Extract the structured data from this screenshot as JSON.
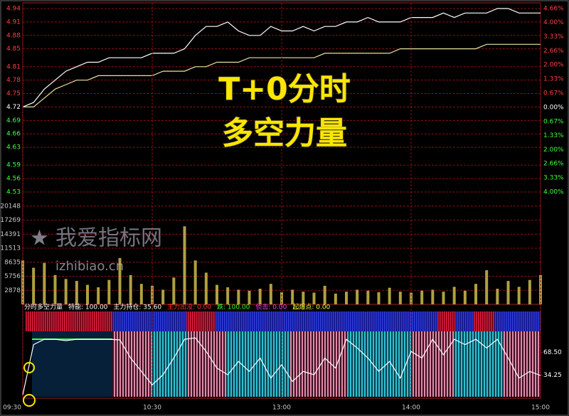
{
  "chart_data": [
    {
      "type": "line",
      "annotations": [
        "T+0分时",
        "多空力量",
        "我爱指标网",
        "izhibiao.cn"
      ],
      "x": [
        0,
        5,
        10,
        15,
        20,
        25,
        30,
        35,
        40,
        45,
        50,
        55,
        60,
        65,
        70,
        75,
        80,
        85,
        90,
        95,
        100,
        105,
        110,
        115,
        120,
        125,
        130,
        135,
        140,
        145,
        150,
        155,
        160,
        165,
        170,
        175,
        180,
        185,
        190,
        195,
        200,
        205,
        210,
        215,
        220,
        225,
        230,
        235,
        240
      ],
      "xlim": [
        0,
        240
      ],
      "series": [
        {
          "color": "#ffffff",
          "values": [
            4.72,
            4.73,
            4.76,
            4.78,
            4.8,
            4.81,
            4.82,
            4.82,
            4.83,
            4.83,
            4.83,
            4.83,
            4.84,
            4.84,
            4.84,
            4.85,
            4.88,
            4.9,
            4.9,
            4.91,
            4.89,
            4.88,
            4.88,
            4.9,
            4.89,
            4.89,
            4.9,
            4.89,
            4.9,
            4.9,
            4.91,
            4.91,
            4.92,
            4.91,
            4.91,
            4.91,
            4.92,
            4.92,
            4.92,
            4.93,
            4.92,
            4.93,
            4.93,
            4.93,
            4.94,
            4.94,
            4.93,
            4.93,
            4.93
          ]
        },
        {
          "color": "#e8e4a0",
          "values": [
            4.72,
            4.72,
            4.74,
            4.76,
            4.77,
            4.78,
            4.78,
            4.79,
            4.79,
            4.79,
            4.79,
            4.79,
            4.79,
            4.8,
            4.8,
            4.8,
            4.81,
            4.81,
            4.82,
            4.82,
            4.82,
            4.83,
            4.83,
            4.83,
            4.83,
            4.83,
            4.83,
            4.83,
            4.84,
            4.84,
            4.84,
            4.84,
            4.84,
            4.84,
            4.84,
            4.85,
            4.85,
            4.85,
            4.85,
            4.85,
            4.85,
            4.85,
            4.85,
            4.86,
            4.86,
            4.86,
            4.86,
            4.86,
            4.86
          ]
        }
      ],
      "ylim": [
        4.53,
        4.94
      ],
      "yticks": [
        4.94,
        4.91,
        4.88,
        4.85,
        4.81,
        4.78,
        4.75,
        4.72,
        4.69,
        4.66,
        4.63,
        4.59,
        4.56,
        4.53
      ],
      "y2lim": [
        -4.0,
        4.66
      ],
      "y2ticks": [
        {
          "value": 4.66,
          "label": "4.66%"
        },
        {
          "value": 4.0,
          "label": "4.00%"
        },
        {
          "value": 3.33,
          "label": "3.33%"
        },
        {
          "value": 2.66,
          "label": "2.66%"
        },
        {
          "value": 2.0,
          "label": "2.00%"
        },
        {
          "value": 1.33,
          "label": "1.33%"
        },
        {
          "value": 0.67,
          "label": "0.67%"
        },
        {
          "value": 0,
          "label": "0.00%"
        },
        {
          "value": -0.67,
          "label": "0.67%"
        },
        {
          "value": -1.33,
          "label": "1.33%"
        },
        {
          "value": -2.0,
          "label": "2.00%"
        },
        {
          "value": -2.66,
          "label": "2.66%"
        },
        {
          "value": -3.33,
          "label": "3.33%"
        },
        {
          "value": -4.0,
          "label": "4.00%"
        }
      ],
      "grid": true
    },
    {
      "type": "bar",
      "x": [
        0,
        5,
        10,
        15,
        20,
        25,
        30,
        35,
        40,
        45,
        50,
        55,
        60,
        65,
        70,
        75,
        80,
        85,
        90,
        95,
        100,
        105,
        110,
        115,
        120,
        125,
        130,
        135,
        140,
        145,
        150,
        155,
        160,
        165,
        170,
        175,
        180,
        185,
        190,
        195,
        200,
        205,
        210,
        215,
        220,
        225,
        230,
        235,
        240
      ],
      "xlim": [
        0,
        240
      ],
      "color": "#b0a040",
      "values": [
        9000,
        7500,
        8500,
        6000,
        5200,
        4800,
        4000,
        3500,
        5000,
        9500,
        6000,
        4200,
        3800,
        3000,
        5500,
        16000,
        9000,
        6500,
        4000,
        3500,
        3000,
        2800,
        3200,
        4200,
        2500,
        3000,
        2600,
        2400,
        3800,
        2200,
        2600,
        3000,
        2800,
        2500,
        3400,
        2600,
        2400,
        2800,
        3000,
        2600,
        3600,
        2800,
        4200,
        7000,
        3200,
        4800,
        3600,
        5000,
        6000
      ],
      "ylim": [
        0,
        21140
      ],
      "yticks": [
        20148,
        17269,
        14391,
        11513,
        8635,
        5756,
        2878
      ],
      "grid": true
    },
    {
      "type": "line",
      "title": "分时多空力量",
      "annotations": [
        {
          "text": "特能: 100.00",
          "color": "#ffffff"
        },
        {
          "text": "主力持仓: 35.60",
          "color": "#ffffff"
        },
        {
          "text": "主力出没: 0.00",
          "color": "#ff3030"
        },
        {
          "text": "跌: 100.00",
          "color": "#30ff30"
        },
        {
          "text": "侦击: 0.00",
          "color": "#ff40ff"
        },
        {
          "text": "起爆点: 0.00",
          "color": "#ffff40"
        }
      ],
      "x": [
        0,
        5,
        10,
        15,
        20,
        25,
        30,
        35,
        40,
        45,
        50,
        55,
        60,
        65,
        70,
        75,
        80,
        85,
        90,
        95,
        100,
        105,
        110,
        115,
        120,
        125,
        130,
        135,
        140,
        145,
        150,
        155,
        160,
        165,
        170,
        175,
        180,
        185,
        190,
        195,
        200,
        205,
        210,
        215,
        220,
        225,
        230,
        235,
        240
      ],
      "xlim": [
        0,
        240
      ],
      "xticks": [
        {
          "value": 0,
          "label": "09:30"
        },
        {
          "value": 60,
          "label": "10:30"
        },
        {
          "value": 120,
          "label": "13:00"
        },
        {
          "value": 180,
          "label": "14:00"
        },
        {
          "value": 240,
          "label": "15:00"
        }
      ],
      "series": [
        {
          "color": "#ffffff",
          "values": [
            5,
            80,
            88,
            88,
            86,
            88,
            88,
            88,
            88,
            87,
            60,
            40,
            20,
            35,
            60,
            88,
            90,
            70,
            45,
            35,
            55,
            40,
            60,
            30,
            50,
            25,
            40,
            35,
            60,
            45,
            88,
            75,
            60,
            40,
            55,
            30,
            70,
            60,
            88,
            65,
            88,
            80,
            88,
            75,
            88,
            60,
            30,
            40,
            34
          ]
        }
      ],
      "ylim": [
        0,
        129.5
      ],
      "y2ticks": [
        {
          "value": 68.5,
          "label": "68.50"
        },
        {
          "value": 34.25,
          "label": "34.25"
        }
      ]
    }
  ]
}
